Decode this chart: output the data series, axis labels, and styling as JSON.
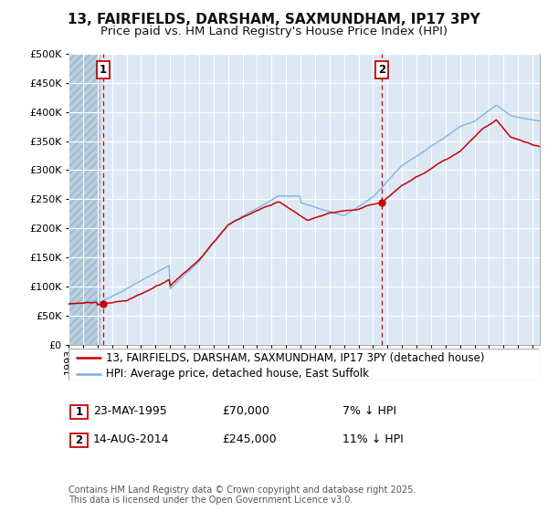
{
  "title": "13, FAIRFIELDS, DARSHAM, SAXMUNDHAM, IP17 3PY",
  "subtitle": "Price paid vs. HM Land Registry's House Price Index (HPI)",
  "legend_line1": "13, FAIRFIELDS, DARSHAM, SAXMUNDHAM, IP17 3PY (detached house)",
  "legend_line2": "HPI: Average price, detached house, East Suffolk",
  "footnote": "Contains HM Land Registry data © Crown copyright and database right 2025.\nThis data is licensed under the Open Government Licence v3.0.",
  "sale1_date": "23-MAY-1995",
  "sale1_price": "£70,000",
  "sale1_hpi": "7% ↓ HPI",
  "sale1_year": 1995.38,
  "sale1_value": 70000,
  "sale2_date": "14-AUG-2014",
  "sale2_price": "£245,000",
  "sale2_hpi": "11% ↓ HPI",
  "sale2_year": 2014.62,
  "sale2_value": 245000,
  "ylim": [
    0,
    500000
  ],
  "xlim_start": 1993.0,
  "xlim_end": 2025.5,
  "bg_color": "#dce9f5",
  "hatch_color": "#b8cfe0",
  "grid_color": "#ffffff",
  "red_color": "#cc0000",
  "blue_color": "#7aacdb",
  "title_fontsize": 11,
  "subtitle_fontsize": 9.5,
  "axis_fontsize": 8,
  "legend_fontsize": 8.5,
  "ann_fontsize": 9,
  "footnote_fontsize": 7
}
